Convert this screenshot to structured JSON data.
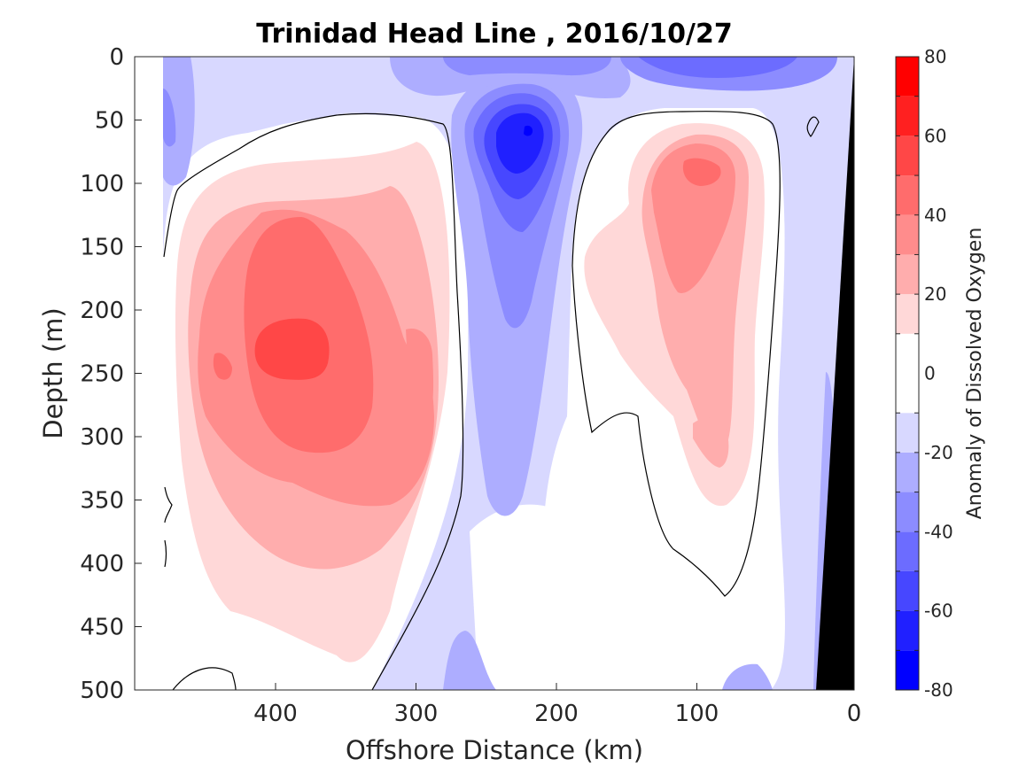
{
  "chart_data": {
    "type": "heatmap",
    "title": "Trinidad Head Line , 2016/10/27",
    "xlabel": "Offshore Distance (km)",
    "ylabel": "Depth (m)",
    "xlim": [
      490,
      0
    ],
    "ylim": [
      0,
      500
    ],
    "x_reversed": true,
    "y_reversed": true,
    "x_ticks": [
      400,
      300,
      200,
      100,
      0
    ],
    "y_ticks": [
      0,
      50,
      100,
      150,
      200,
      250,
      300,
      350,
      400,
      450,
      500
    ],
    "colorbar": {
      "label": "Anomaly of Dissolved Oxygen",
      "range": [
        -80,
        80
      ],
      "ticks": [
        -80,
        -60,
        -40,
        -20,
        0,
        20,
        40,
        60,
        80
      ],
      "levels": [
        -80,
        -70,
        -60,
        -50,
        -40,
        -30,
        -20,
        -10,
        10,
        20,
        30,
        40,
        50,
        60,
        70,
        80
      ],
      "colors": [
        "#0000ff",
        "#2020ff",
        "#4747ff",
        "#6c6cff",
        "#8c8cff",
        "#adadff",
        "#d8d8ff",
        "#ffffff",
        "#ffd8d8",
        "#ffadad",
        "#ff8c8c",
        "#ff6c6c",
        "#ff4747",
        "#ff2020",
        "#ff0000"
      ]
    },
    "features": [
      {
        "name": "offshore-positive-anomaly",
        "x_center": 370,
        "depth_center": 230,
        "max_value": 50
      },
      {
        "name": "mid-negative-anomaly",
        "x_center": 220,
        "depth_center": 60,
        "min_value": -70
      },
      {
        "name": "nearshore-positive-anomaly",
        "x_center": 100,
        "depth_center": 90,
        "max_value": 40
      }
    ]
  }
}
